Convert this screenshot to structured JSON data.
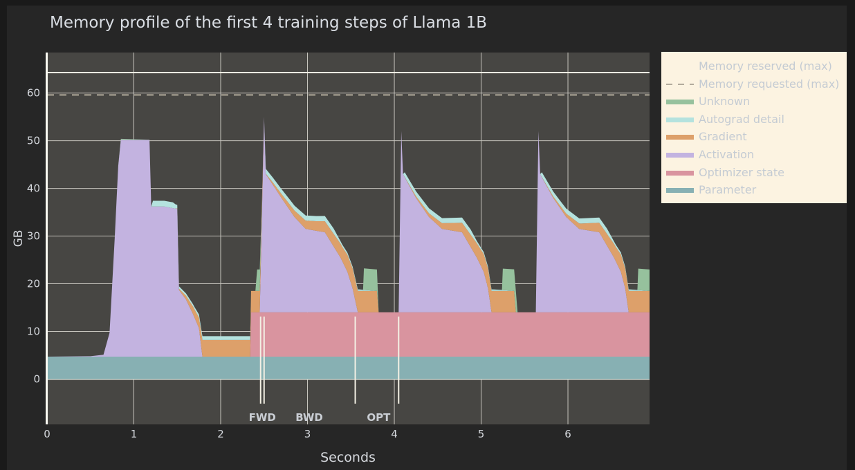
{
  "chart_data": {
    "type": "area",
    "title": "Memory profile of the first 4 training steps of Llama 1B",
    "xlabel": "Seconds",
    "ylabel": "GB",
    "xlim": [
      0,
      6.94
    ],
    "ylim": [
      -9.5,
      68.5
    ],
    "x_ticks": [
      0,
      1,
      2,
      3,
      4,
      5,
      6
    ],
    "y_ticks": [
      0,
      10,
      20,
      30,
      40,
      50,
      60
    ],
    "grid": true,
    "legend_position": "right",
    "reference_lines": [
      {
        "name": "Memory reserved (max)",
        "value": 64.3,
        "style": "solid"
      },
      {
        "name": "Memory requested (max)",
        "value": 59.6,
        "style": "dashed"
      }
    ],
    "phase_markers": [
      {
        "label": "FWD",
        "x": 2.46,
        "x_label": 2.48
      },
      {
        "label": "",
        "x": 2.5,
        "x_label": null
      },
      {
        "label": "BWD",
        "x": 3.55,
        "x_label": 3.02
      },
      {
        "label": "OPT",
        "x": 4.05,
        "x_label": 3.82
      }
    ],
    "stack_order": [
      "Parameter",
      "Optimizer state",
      "Activation",
      "Gradient",
      "Autograd detail",
      "Unknown"
    ],
    "series": [
      {
        "name": "Parameter",
        "color": "#87b0b3",
        "points": [
          [
            0,
            4.7
          ],
          [
            6.94,
            4.7
          ]
        ]
      },
      {
        "name": "Optimizer state",
        "color": "#d9949f",
        "points": [
          [
            0,
            0
          ],
          [
            2.34,
            0
          ],
          [
            2.35,
            9.3
          ],
          [
            6.94,
            9.3
          ]
        ]
      },
      {
        "name": "Activation",
        "color": "#c3b3e0",
        "points": [
          [
            0,
            0
          ],
          [
            0.5,
            0.1
          ],
          [
            0.65,
            0.4
          ],
          [
            0.72,
            5
          ],
          [
            0.78,
            25
          ],
          [
            0.82,
            40
          ],
          [
            0.85,
            45.5
          ],
          [
            1.18,
            45.5
          ],
          [
            1.2,
            31.5
          ],
          [
            1.35,
            31.5
          ],
          [
            1.5,
            31
          ],
          [
            1.52,
            14
          ],
          [
            1.6,
            12
          ],
          [
            1.68,
            9
          ],
          [
            1.75,
            6
          ],
          [
            1.79,
            0
          ],
          [
            2.35,
            0
          ],
          [
            2.45,
            0
          ],
          [
            2.5,
            41
          ],
          [
            2.52,
            29
          ],
          [
            2.7,
            24
          ],
          [
            2.85,
            20
          ],
          [
            2.98,
            17.5
          ],
          [
            3.2,
            16.8
          ],
          [
            3.38,
            11.5
          ],
          [
            3.46,
            8.5
          ],
          [
            3.52,
            5
          ],
          [
            3.58,
            0
          ],
          [
            4.05,
            0
          ],
          [
            4.08,
            38
          ],
          [
            4.1,
            29
          ],
          [
            4.25,
            24
          ],
          [
            4.4,
            20
          ],
          [
            4.55,
            17.5
          ],
          [
            4.78,
            16.8
          ],
          [
            4.95,
            11.5
          ],
          [
            5.03,
            8.5
          ],
          [
            5.08,
            5
          ],
          [
            5.12,
            0
          ],
          [
            5.63,
            0
          ],
          [
            5.66,
            38
          ],
          [
            5.68,
            29
          ],
          [
            5.83,
            24
          ],
          [
            5.98,
            20
          ],
          [
            6.13,
            17.5
          ],
          [
            6.36,
            16.8
          ],
          [
            6.53,
            11.5
          ],
          [
            6.61,
            8.5
          ],
          [
            6.66,
            5
          ],
          [
            6.7,
            0
          ],
          [
            6.94,
            0
          ]
        ]
      },
      {
        "name": "Gradient",
        "color": "#dda06a",
        "points": [
          [
            0,
            0
          ],
          [
            1.48,
            0
          ],
          [
            1.6,
            0.8
          ],
          [
            1.75,
            2.2
          ],
          [
            1.79,
            3.5
          ],
          [
            2.34,
            3.5
          ],
          [
            2.35,
            4.5
          ],
          [
            2.45,
            4.5
          ],
          [
            2.5,
            0
          ],
          [
            2.6,
            0.5
          ],
          [
            2.8,
            1.2
          ],
          [
            3.0,
            1.8
          ],
          [
            3.1,
            2.0
          ],
          [
            3.4,
            3.0
          ],
          [
            3.52,
            4.2
          ],
          [
            3.58,
            4.5
          ],
          [
            3.8,
            4.5
          ],
          [
            3.82,
            0
          ],
          [
            4.1,
            0
          ],
          [
            4.3,
            0.5
          ],
          [
            4.55,
            1.2
          ],
          [
            4.78,
            2.0
          ],
          [
            4.95,
            3.0
          ],
          [
            5.08,
            4.2
          ],
          [
            5.12,
            4.5
          ],
          [
            5.38,
            4.5
          ],
          [
            5.4,
            0
          ],
          [
            5.68,
            0
          ],
          [
            5.9,
            0.5
          ],
          [
            6.15,
            1.2
          ],
          [
            6.36,
            2.0
          ],
          [
            6.55,
            3.0
          ],
          [
            6.66,
            4.2
          ],
          [
            6.7,
            4.5
          ],
          [
            6.94,
            4.5
          ]
        ]
      },
      {
        "name": "Autograd detail",
        "color": "#b4e2de",
        "points": [
          [
            0,
            0
          ],
          [
            1.2,
            0
          ],
          [
            1.22,
            1.2
          ],
          [
            1.45,
            1.2
          ],
          [
            1.52,
            0.5
          ],
          [
            1.7,
            0.5
          ],
          [
            1.79,
            0.8
          ],
          [
            2.34,
            0.8
          ],
          [
            2.35,
            0
          ],
          [
            2.5,
            0
          ],
          [
            2.52,
            1.0
          ],
          [
            3.3,
            1.1
          ],
          [
            3.38,
            0.5
          ],
          [
            3.6,
            0.3
          ],
          [
            3.8,
            0
          ],
          [
            4.1,
            0
          ],
          [
            4.12,
            1.0
          ],
          [
            4.88,
            1.1
          ],
          [
            4.95,
            0.5
          ],
          [
            5.15,
            0.3
          ],
          [
            5.4,
            0
          ],
          [
            5.68,
            0
          ],
          [
            5.7,
            1.0
          ],
          [
            6.45,
            1.1
          ],
          [
            6.53,
            0.5
          ],
          [
            6.72,
            0.3
          ],
          [
            6.94,
            0
          ]
        ]
      },
      {
        "name": "Unknown",
        "color": "#96c19d",
        "points": [
          [
            0,
            0
          ],
          [
            0.8,
            0
          ],
          [
            0.85,
            0.2
          ],
          [
            1.2,
            0
          ],
          [
            2.4,
            0
          ],
          [
            2.42,
            4.5
          ],
          [
            2.45,
            4.5
          ],
          [
            2.48,
            0
          ],
          [
            3.64,
            0
          ],
          [
            3.65,
            4.5
          ],
          [
            3.8,
            4.5
          ],
          [
            3.82,
            0
          ],
          [
            5.24,
            0
          ],
          [
            5.25,
            4.5
          ],
          [
            5.4,
            4.5
          ],
          [
            5.42,
            0
          ],
          [
            6.8,
            0
          ],
          [
            6.81,
            4.5
          ],
          [
            6.94,
            4.5
          ]
        ]
      }
    ]
  }
}
